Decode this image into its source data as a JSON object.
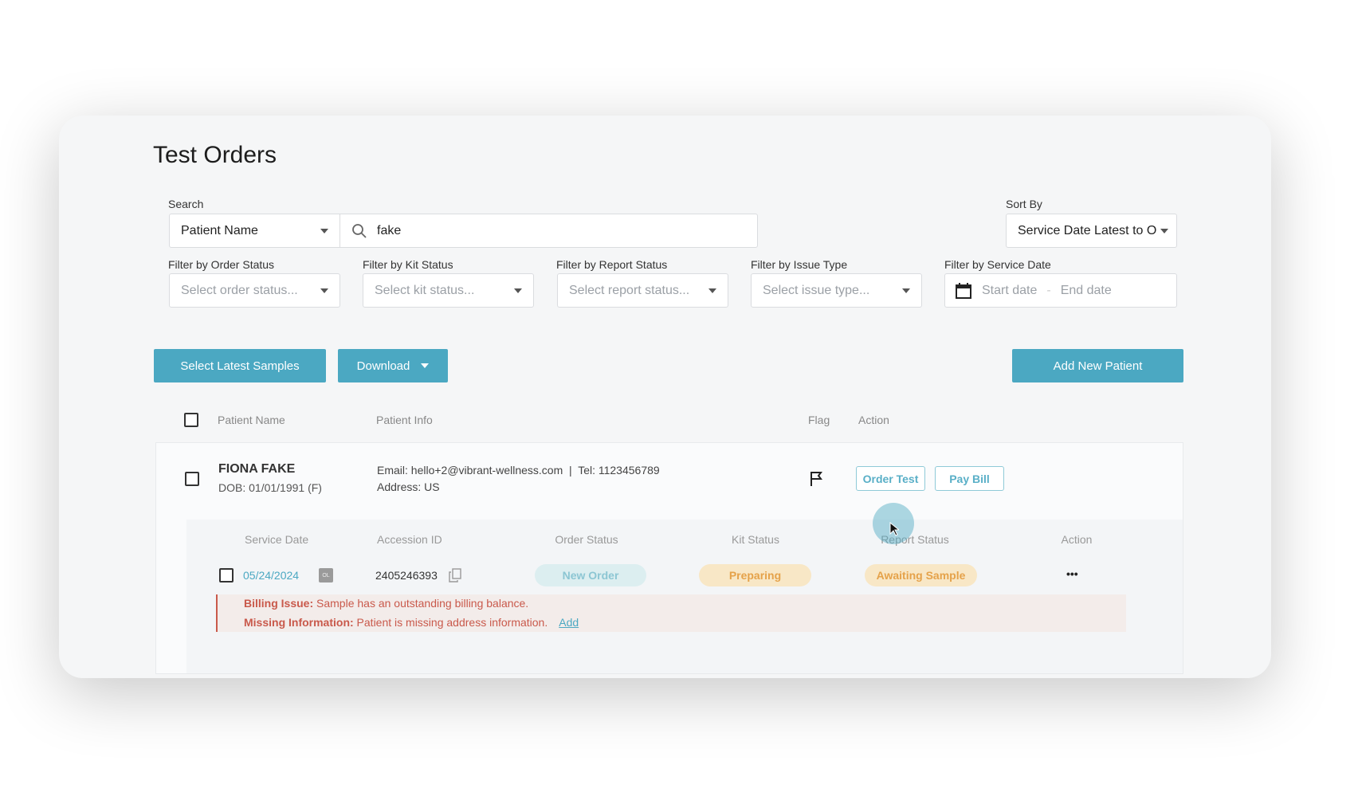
{
  "page": {
    "title": "Test Orders"
  },
  "search": {
    "label": "Search",
    "field": "Patient Name",
    "value": "fake"
  },
  "sort": {
    "label": "Sort By",
    "value": "Service Date Latest to O"
  },
  "filters": [
    {
      "label": "Filter by Order Status",
      "placeholder": "Select order status..."
    },
    {
      "label": "Filter by Kit Status",
      "placeholder": "Select kit status..."
    },
    {
      "label": "Filter by Report Status",
      "placeholder": "Select report status..."
    },
    {
      "label": "Filter by Issue Type",
      "placeholder": "Select issue type..."
    }
  ],
  "date_filter": {
    "label": "Filter by Service Date",
    "start": "Start date",
    "sep": "-",
    "end": "End date"
  },
  "toolbar": {
    "select_latest": "Select Latest Samples",
    "download": "Download",
    "add_patient": "Add New Patient"
  },
  "table": {
    "headers": {
      "name": "Patient Name",
      "info": "Patient Info",
      "flag": "Flag",
      "action": "Action"
    }
  },
  "patient": {
    "name": "FIONA FAKE",
    "dob": "DOB: 01/01/1991  (F)",
    "contact": "Email: hello+2@vibrant-wellness.com  |  Tel: 1123456789",
    "address": "Address: US",
    "order_test": "Order Test",
    "pay_bill": "Pay Bill"
  },
  "samples": {
    "headers": {
      "date": "Service Date",
      "accession": "Accession ID",
      "order": "Order Status",
      "kit": "Kit Status",
      "report": "Report Status",
      "action": "Action"
    },
    "row": {
      "date": "05/24/2024",
      "badge": "OL",
      "accession": "2405246393",
      "order_status": "New Order",
      "kit_status": "Preparing",
      "report_status": "Awaiting Sample",
      "more": "•••"
    },
    "issues": [
      {
        "type": "Billing Issue:",
        "text": " Sample has an outstanding billing balance."
      },
      {
        "type": "Missing Information:",
        "text": " Patient is missing address information.",
        "link": "Add"
      }
    ]
  },
  "colors": {
    "accent": "#4ba8c2",
    "issue": "#c9594b",
    "pending": "#e5a24a"
  }
}
